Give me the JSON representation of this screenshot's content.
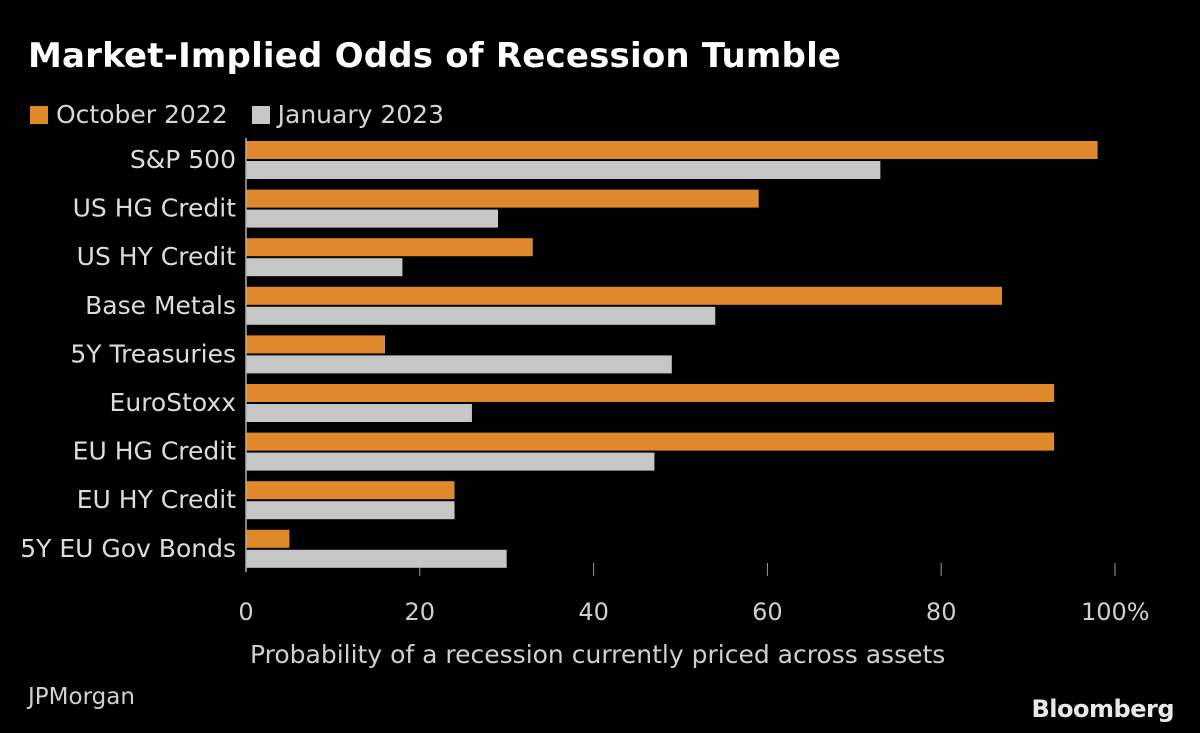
{
  "chart_data": {
    "type": "bar",
    "orientation": "horizontal",
    "title": "Market-Implied Odds of Recession Tumble",
    "xlabel": "Probability of a recession currently priced across assets",
    "ylabel": "",
    "xlim": [
      0,
      100
    ],
    "x_ticks": [
      0,
      20,
      40,
      60,
      80,
      100
    ],
    "x_tick_labels": [
      "0",
      "20",
      "40",
      "60",
      "80",
      "100%"
    ],
    "legend_position": "top-left",
    "categories": [
      "S&P 500",
      "US HG Credit",
      "US HY Credit",
      "Base Metals",
      "5Y Treasuries",
      "EuroStoxx",
      "EU HG Credit",
      "EU HY Credit",
      "5Y EU Gov Bonds"
    ],
    "series": [
      {
        "name": "October 2022",
        "color": "#e0892a",
        "values": [
          98,
          59,
          33,
          87,
          16,
          93,
          93,
          24,
          5
        ]
      },
      {
        "name": "January 2023",
        "color": "#c6c6c6",
        "values": [
          73,
          29,
          18,
          54,
          49,
          26,
          47,
          24,
          30
        ]
      }
    ]
  },
  "footer": {
    "source": "JPMorgan",
    "brand": "Bloomberg"
  }
}
